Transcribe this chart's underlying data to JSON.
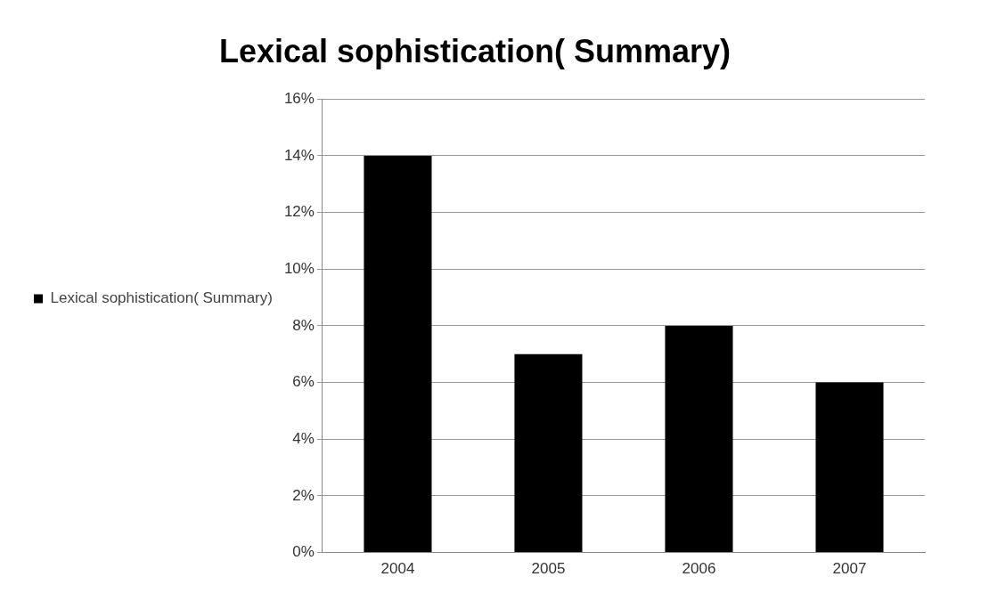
{
  "chart_data": {
    "type": "bar",
    "title": "Lexical sophistication( Summary)",
    "categories": [
      "2004",
      "2005",
      "2006",
      "2007"
    ],
    "series": [
      {
        "name": "Lexical sophistication( Summary)",
        "color": "#000000",
        "values": [
          14,
          7,
          8,
          6
        ]
      }
    ],
    "ylim": [
      0,
      16
    ],
    "yticks": [
      {
        "value": 0,
        "label": "0%"
      },
      {
        "value": 2,
        "label": "2%"
      },
      {
        "value": 4,
        "label": "4%"
      },
      {
        "value": 6,
        "label": "6%"
      },
      {
        "value": 8,
        "label": "8%"
      },
      {
        "value": 10,
        "label": "10%"
      },
      {
        "value": 12,
        "label": "12%"
      },
      {
        "value": 14,
        "label": "14%"
      },
      {
        "value": 16,
        "label": "16%"
      }
    ],
    "grid": "y",
    "legend": "left"
  }
}
